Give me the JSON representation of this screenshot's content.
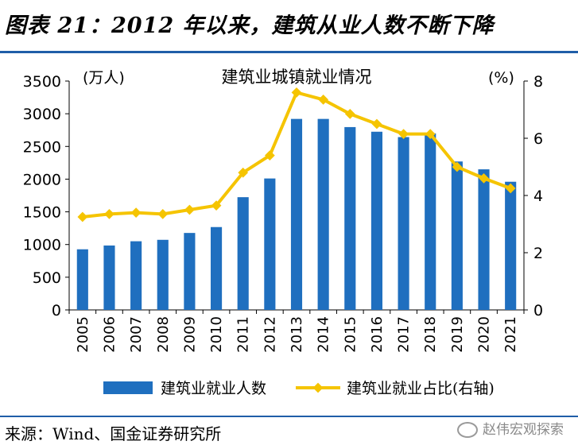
{
  "header": {
    "title": "图表 21：2012 年以来，建筑从业人数不断下降"
  },
  "footer": {
    "source": "来源：Wind、国金证券研究所",
    "watermark": "赵伟宏观探索"
  },
  "chart_data": {
    "type": "bar",
    "title": "建筑业城镇就业情况",
    "categories": [
      "2005",
      "2006",
      "2007",
      "2008",
      "2009",
      "2010",
      "2011",
      "2012",
      "2013",
      "2014",
      "2015",
      "2016",
      "2017",
      "2018",
      "2019",
      "2020",
      "2021"
    ],
    "y_left": {
      "unit": "(万人)",
      "ylim": [
        0,
        3500
      ],
      "ticks": [
        0,
        500,
        1000,
        1500,
        2000,
        2500,
        3000,
        3500
      ]
    },
    "y_right": {
      "unit": "(%)",
      "ylim": [
        0,
        8
      ],
      "ticks": [
        0,
        2,
        4,
        6,
        8
      ]
    },
    "grid": false,
    "legend_position": "bottom",
    "series": [
      {
        "name": "建筑业就业人数",
        "type": "bar",
        "axis": "left",
        "color": "#1f6fbf",
        "values": [
          927,
          985,
          1050,
          1072,
          1177,
          1267,
          1724,
          2010,
          2921,
          2921,
          2796,
          2725,
          2643,
          2700,
          2270,
          2150,
          1960
        ]
      },
      {
        "name": "建筑业就业占比(右轴)",
        "type": "line",
        "axis": "right",
        "color": "#f5c400",
        "values": [
          3.25,
          3.35,
          3.4,
          3.35,
          3.5,
          3.65,
          4.8,
          5.4,
          7.6,
          7.35,
          6.85,
          6.5,
          6.15,
          6.15,
          5.0,
          4.6,
          4.25
        ]
      }
    ]
  }
}
